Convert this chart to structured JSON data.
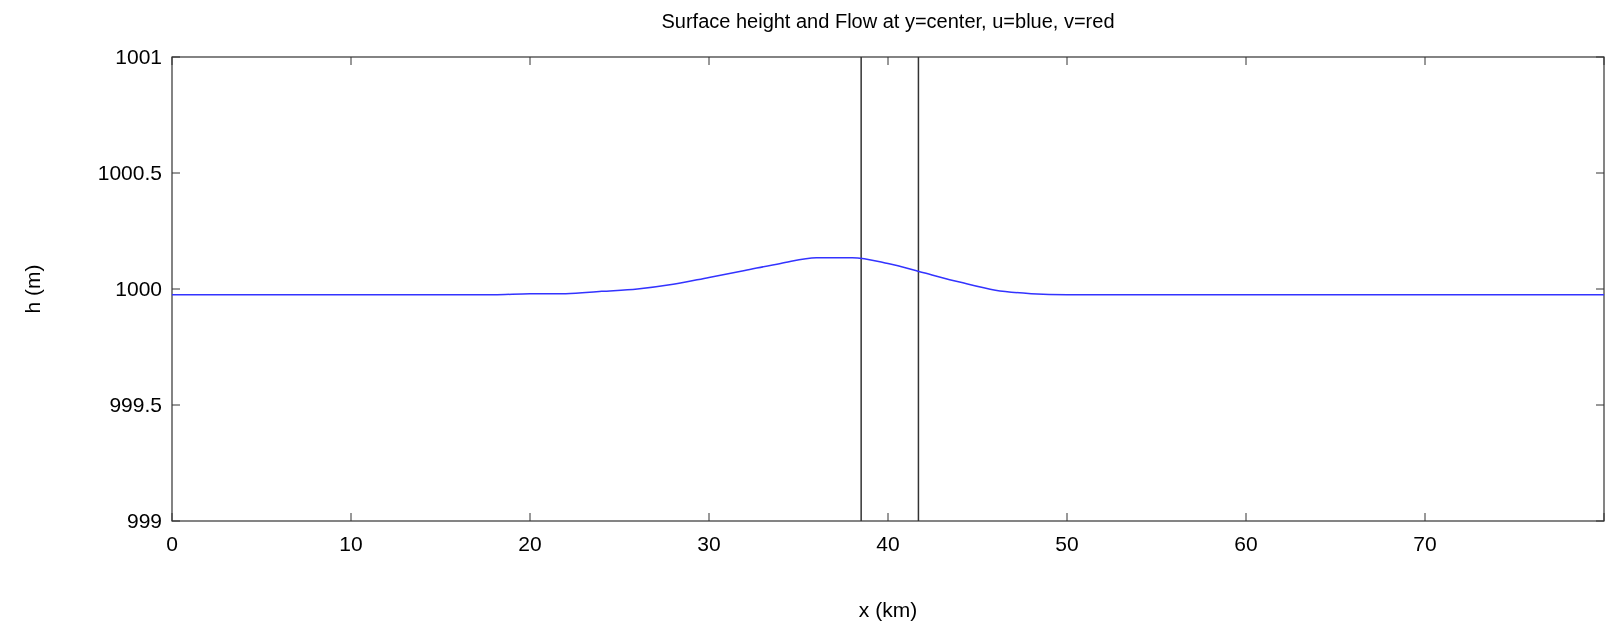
{
  "chart_data": {
    "type": "line",
    "title": "Surface height and Flow at y=center, u=blue, v=red",
    "xlabel": "x (km)",
    "ylabel": "h (m)",
    "x": [
      0,
      2,
      4,
      6,
      8,
      10,
      12,
      14,
      16,
      18,
      20,
      22,
      24,
      26,
      28,
      30,
      32,
      34,
      36,
      38,
      40,
      42,
      44,
      46,
      48,
      50,
      52,
      54,
      56,
      58,
      60,
      62,
      64,
      66,
      68,
      70,
      72,
      74,
      76,
      78,
      80
    ],
    "series": [
      {
        "color": "#3333ff",
        "values": [
          999.975,
          999.975,
          999.975,
          999.975,
          999.975,
          999.975,
          999.975,
          999.975,
          999.975,
          999.975,
          999.98,
          999.98,
          999.99,
          1000.0,
          1000.02,
          1000.05,
          1000.08,
          1000.11,
          1000.135,
          1000.135,
          1000.11,
          1000.07,
          1000.03,
          999.995,
          999.98,
          999.975,
          999.975,
          999.975,
          999.975,
          999.975,
          999.975,
          999.975,
          999.975,
          999.975,
          999.975,
          999.975,
          999.975,
          999.975,
          999.975,
          999.975,
          999.975
        ]
      }
    ],
    "xlim": [
      0,
      80
    ],
    "xticks": [
      0,
      10,
      20,
      30,
      40,
      50,
      60,
      70,
      {
        "value": 80,
        "label": null
      }
    ],
    "ylim": [
      999,
      1001
    ],
    "yticks": [
      999,
      999.5,
      1000,
      1000.5,
      1001
    ],
    "ref_lines": [
      {
        "axis": "x",
        "value": 38.5,
        "color": "#333333"
      },
      {
        "axis": "x",
        "value": 41.7,
        "color": "#333333"
      }
    ],
    "grid": false,
    "marker": "none",
    "line_style": "solid"
  }
}
